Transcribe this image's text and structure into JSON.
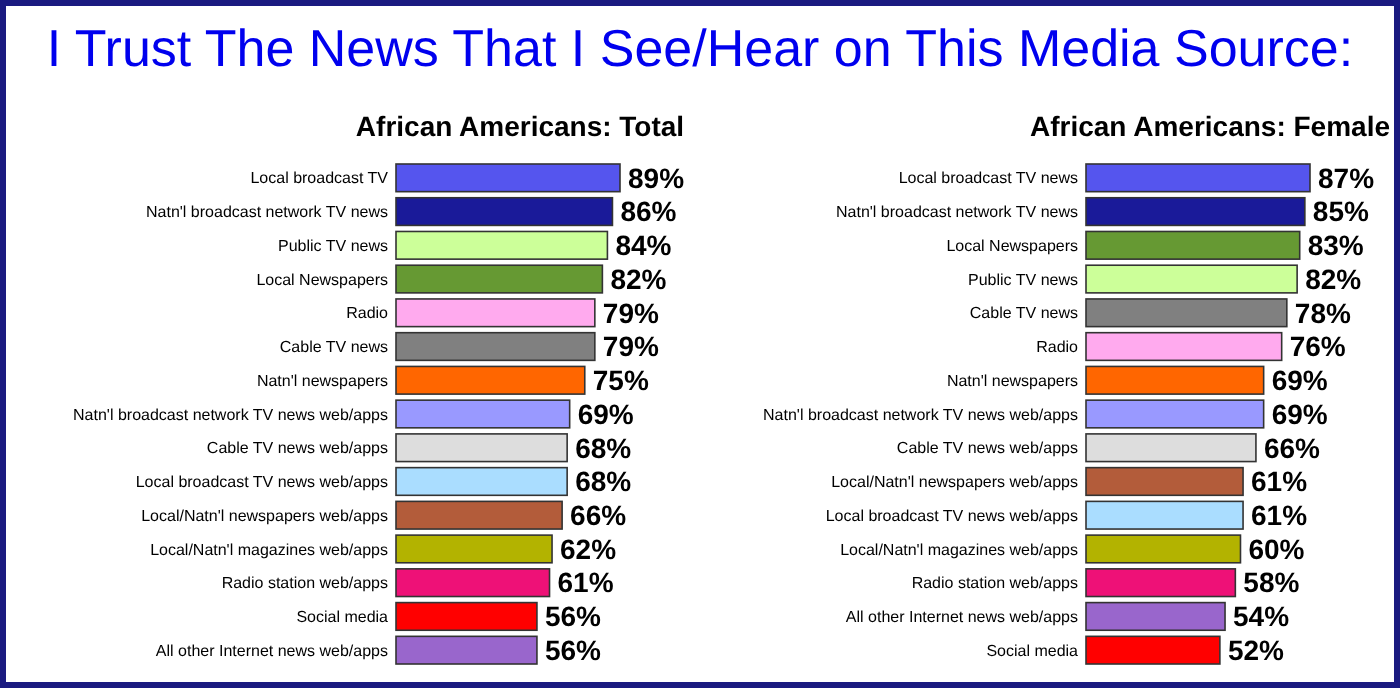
{
  "chart_data": [
    {
      "type": "bar",
      "orientation": "horizontal",
      "title": "African Americans: Total",
      "annotations": [
        "I Trust The News That I See/Hear on This Media Source:"
      ],
      "categories": [
        "Local broadcast TV",
        "Natn'l broadcast network TV news",
        "Public TV news",
        "Local Newspapers",
        "Radio",
        "Cable TV news",
        "Natn'l newspapers",
        "Natn'l broadcast network TV news web/apps",
        "Cable TV news web/apps",
        "Local broadcast TV news web/apps",
        "Local/Natn'l newspapers web/apps",
        "Local/Natn'l magazines web/apps",
        "Radio station web/apps",
        "Social media",
        "All other Internet news web/apps"
      ],
      "values": [
        89,
        86,
        84,
        82,
        79,
        79,
        75,
        69,
        68,
        68,
        66,
        62,
        61,
        56,
        56
      ],
      "value_labels": [
        "89%",
        "86%",
        "84%",
        "82%",
        "79%",
        "79%",
        "75%",
        "69%",
        "68%",
        "68%",
        "66%",
        "62%",
        "61%",
        "56%",
        "56%"
      ],
      "colors": [
        "#5555ee",
        "#1a1a99",
        "#ccff99",
        "#669933",
        "#ffaaee",
        "#808080",
        "#ff6600",
        "#9999ff",
        "#dddddd",
        "#aaddff",
        "#b35c3a",
        "#b3b300",
        "#ee1177",
        "#ff0000",
        "#9966cc"
      ]
    },
    {
      "type": "bar",
      "orientation": "horizontal",
      "title": "African Americans: Female",
      "categories": [
        "Local broadcast TV news",
        "Natn'l broadcast network TV news",
        "Local Newspapers",
        "Public TV news",
        "Cable TV news",
        "Radio",
        "Natn'l newspapers",
        "Natn'l broadcast network TV news web/apps",
        "Cable TV news web/apps",
        "Local/Natn'l newspapers web/apps",
        "Local broadcast TV news web/apps",
        "Local/Natn'l magazines web/apps",
        "Radio station web/apps",
        "All other Internet news web/apps",
        "Social media"
      ],
      "values": [
        87,
        85,
        83,
        82,
        78,
        76,
        69,
        69,
        66,
        61,
        61,
        60,
        58,
        54,
        52
      ],
      "value_labels": [
        "87%",
        "85%",
        "83%",
        "82%",
        "78%",
        "76%",
        "69%",
        "69%",
        "66%",
        "61%",
        "61%",
        "60%",
        "58%",
        "54%",
        "52%"
      ],
      "colors": [
        "#5555ee",
        "#1a1a99",
        "#669933",
        "#ccff99",
        "#808080",
        "#ffaaee",
        "#ff6600",
        "#9999ff",
        "#dddddd",
        "#b35c3a",
        "#aaddff",
        "#b3b300",
        "#ee1177",
        "#9966cc",
        "#ff0000"
      ]
    }
  ]
}
